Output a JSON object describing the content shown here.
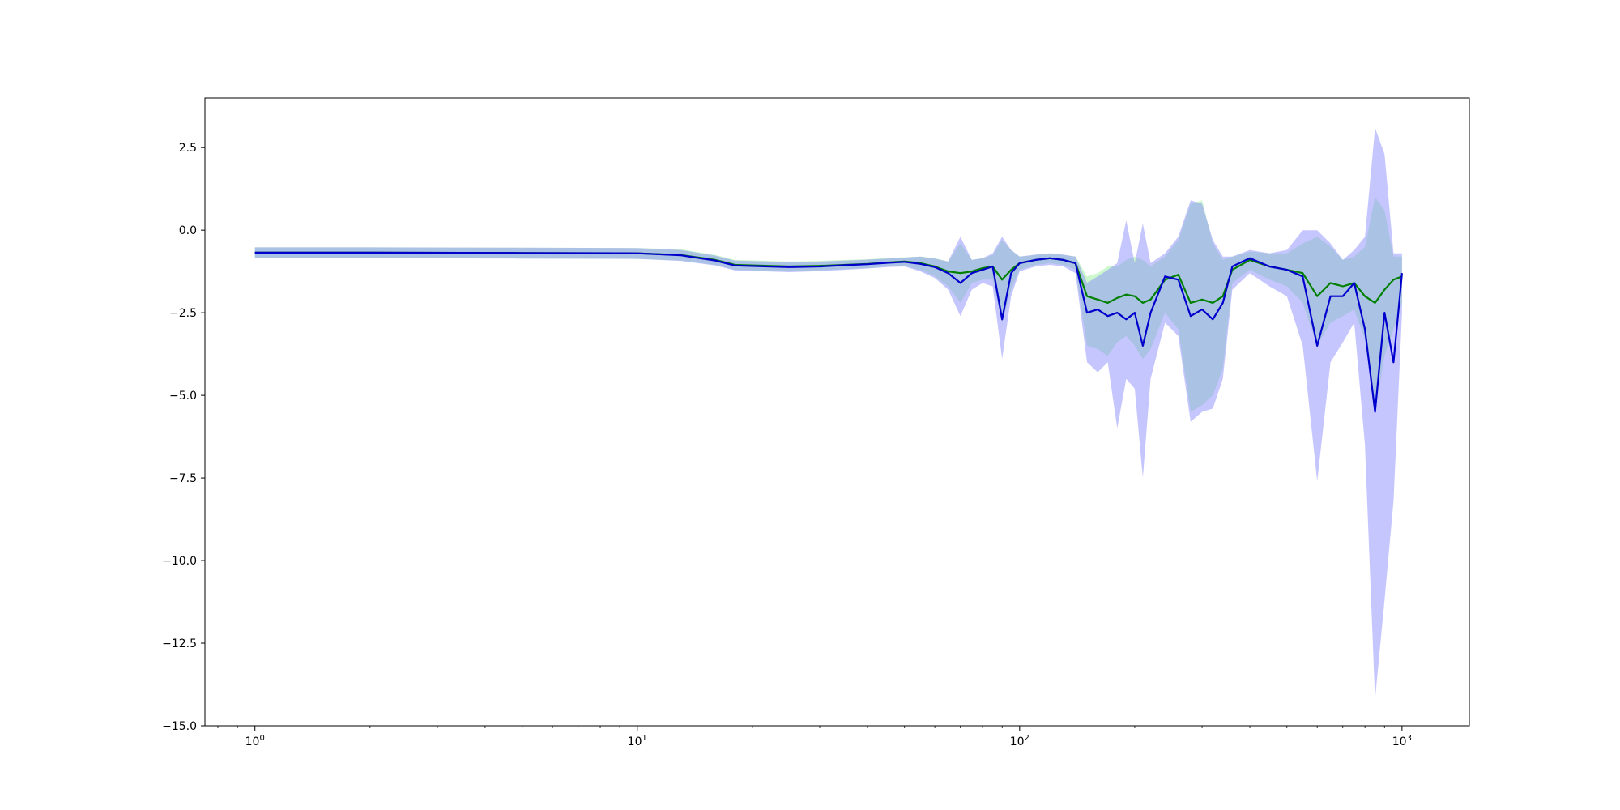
{
  "chart_data": {
    "type": "line",
    "title": "",
    "xlabel": "",
    "ylabel": "",
    "x_scale": "log",
    "xlim": [
      0.74,
      1500
    ],
    "ylim": [
      -15.0,
      4.0
    ],
    "grid": false,
    "legend": "none",
    "y_ticks": [
      {
        "value": 2.5,
        "label": "2.5"
      },
      {
        "value": 0.0,
        "label": "0.0"
      },
      {
        "value": -2.5,
        "label": "−2.5"
      },
      {
        "value": -5.0,
        "label": "−5.0"
      },
      {
        "value": -7.5,
        "label": "−7.5"
      },
      {
        "value": -10.0,
        "label": "−10.0"
      },
      {
        "value": -12.5,
        "label": "−12.5"
      },
      {
        "value": -15.0,
        "label": "−15.0"
      }
    ],
    "x_ticks": [
      {
        "value": 1,
        "base": "10",
        "exp": "0"
      },
      {
        "value": 10,
        "base": "10",
        "exp": "1"
      },
      {
        "value": 100,
        "base": "10",
        "exp": "2"
      },
      {
        "value": 1000,
        "base": "10",
        "exp": "3"
      }
    ],
    "series": [
      {
        "color": "#008000",
        "band_color": "#90ee90",
        "x": [
          1,
          2,
          5,
          10,
          13,
          16,
          18,
          22,
          25,
          30,
          35,
          40,
          45,
          50,
          55,
          60,
          65,
          70,
          75,
          80,
          85,
          90,
          95,
          100,
          110,
          120,
          130,
          140,
          150,
          160,
          170,
          180,
          190,
          200,
          210,
          220,
          240,
          260,
          280,
          300,
          320,
          340,
          360,
          400,
          450,
          500,
          550,
          600,
          650,
          700,
          750,
          800,
          850,
          900,
          950,
          1000
        ],
        "y": [
          -0.68,
          -0.68,
          -0.69,
          -0.7,
          -0.75,
          -0.9,
          -1.05,
          -1.08,
          -1.1,
          -1.08,
          -1.05,
          -1.02,
          -0.98,
          -0.95,
          -1.0,
          -1.1,
          -1.25,
          -1.3,
          -1.25,
          -1.15,
          -1.1,
          -1.5,
          -1.2,
          -1.0,
          -0.9,
          -0.85,
          -0.9,
          -1.0,
          -2.0,
          -2.1,
          -2.2,
          -2.05,
          -1.95,
          -2.0,
          -2.2,
          -2.1,
          -1.5,
          -1.35,
          -2.2,
          -2.1,
          -2.2,
          -2.0,
          -1.2,
          -0.9,
          -1.1,
          -1.2,
          -1.3,
          -2.0,
          -1.6,
          -1.7,
          -1.6,
          -2.0,
          -2.2,
          -1.8,
          -1.5,
          -1.4
        ],
        "lower": [
          -0.85,
          -0.85,
          -0.86,
          -0.87,
          -0.92,
          -1.05,
          -1.2,
          -1.23,
          -1.25,
          -1.22,
          -1.18,
          -1.15,
          -1.1,
          -1.08,
          -1.2,
          -1.4,
          -1.7,
          -2.2,
          -1.6,
          -1.5,
          -1.5,
          -2.8,
          -1.8,
          -1.2,
          -1.05,
          -1.0,
          -1.05,
          -1.2,
          -3.5,
          -3.6,
          -3.8,
          -3.4,
          -3.2,
          -3.5,
          -3.9,
          -3.6,
          -2.5,
          -3.0,
          -5.5,
          -5.3,
          -5.0,
          -4.2,
          -1.6,
          -1.2,
          -1.5,
          -1.7,
          -2.2,
          -3.5,
          -2.8,
          -2.6,
          -2.4,
          -3.3,
          -5.5,
          -3.8,
          -3.0,
          -2.2
        ],
        "upper": [
          -0.52,
          -0.52,
          -0.53,
          -0.54,
          -0.58,
          -0.75,
          -0.9,
          -0.93,
          -0.95,
          -0.93,
          -0.9,
          -0.88,
          -0.84,
          -0.82,
          -0.8,
          -0.85,
          -0.95,
          -0.4,
          -0.9,
          -0.85,
          -0.75,
          -0.3,
          -0.6,
          -0.8,
          -0.75,
          -0.7,
          -0.75,
          -0.8,
          -1.4,
          -1.3,
          -1.1,
          -1.1,
          -0.9,
          -0.8,
          -0.9,
          -1.1,
          -0.8,
          -0.3,
          0.8,
          0.9,
          -0.4,
          -0.9,
          -0.8,
          -0.65,
          -0.7,
          -0.7,
          -0.4,
          -0.2,
          -0.5,
          -0.9,
          -0.8,
          -0.5,
          1.0,
          0.6,
          -0.8,
          -0.8
        ]
      },
      {
        "color": "#0000cc",
        "band_color": "#8080ff",
        "x": [
          1,
          2,
          5,
          10,
          13,
          16,
          18,
          22,
          25,
          30,
          35,
          40,
          45,
          50,
          55,
          60,
          65,
          70,
          75,
          80,
          85,
          90,
          95,
          100,
          110,
          120,
          130,
          140,
          150,
          160,
          170,
          180,
          190,
          200,
          210,
          220,
          240,
          260,
          280,
          300,
          320,
          340,
          360,
          400,
          450,
          500,
          550,
          600,
          650,
          700,
          750,
          800,
          850,
          900,
          950,
          1000
        ],
        "y": [
          -0.68,
          -0.68,
          -0.69,
          -0.7,
          -0.76,
          -0.92,
          -1.07,
          -1.1,
          -1.12,
          -1.1,
          -1.06,
          -1.03,
          -0.99,
          -0.96,
          -1.02,
          -1.12,
          -1.3,
          -1.6,
          -1.3,
          -1.2,
          -1.1,
          -2.7,
          -1.3,
          -1.0,
          -0.9,
          -0.85,
          -0.9,
          -1.0,
          -2.5,
          -2.4,
          -2.6,
          -2.5,
          -2.7,
          -2.5,
          -3.5,
          -2.5,
          -1.4,
          -1.5,
          -2.6,
          -2.4,
          -2.7,
          -2.2,
          -1.1,
          -0.85,
          -1.1,
          -1.2,
          -1.4,
          -3.5,
          -2.0,
          -2.0,
          -1.6,
          -3.0,
          -5.5,
          -2.5,
          -4.0,
          -1.3
        ],
        "lower": [
          -0.85,
          -0.85,
          -0.86,
          -0.87,
          -0.93,
          -1.07,
          -1.22,
          -1.25,
          -1.27,
          -1.24,
          -1.2,
          -1.16,
          -1.12,
          -1.1,
          -1.25,
          -1.45,
          -1.8,
          -2.6,
          -1.8,
          -1.6,
          -1.7,
          -3.9,
          -2.0,
          -1.25,
          -1.1,
          -1.05,
          -1.1,
          -1.3,
          -4.0,
          -4.3,
          -4.0,
          -6.0,
          -4.5,
          -4.8,
          -7.5,
          -4.5,
          -2.8,
          -3.2,
          -5.8,
          -5.5,
          -5.4,
          -4.5,
          -1.8,
          -1.3,
          -1.7,
          -2.0,
          -3.5,
          -7.6,
          -4.0,
          -3.4,
          -2.8,
          -6.5,
          -14.2,
          -11.2,
          -8.2,
          -2.5
        ],
        "upper": [
          -0.52,
          -0.52,
          -0.53,
          -0.54,
          -0.6,
          -0.77,
          -0.92,
          -0.95,
          -0.97,
          -0.95,
          -0.92,
          -0.89,
          -0.86,
          -0.83,
          -0.8,
          -0.86,
          -0.95,
          -0.2,
          -0.9,
          -0.85,
          -0.7,
          -0.2,
          -0.6,
          -0.8,
          -0.74,
          -0.7,
          -0.74,
          -0.8,
          -1.6,
          -1.4,
          -1.2,
          -1.0,
          0.3,
          -1.0,
          0.2,
          -1.0,
          -0.7,
          -0.2,
          0.9,
          0.8,
          -0.3,
          -0.8,
          -0.8,
          -0.6,
          -0.7,
          -0.6,
          0.0,
          0.0,
          -0.4,
          -0.9,
          -0.6,
          -0.2,
          3.1,
          2.3,
          -0.7,
          -0.7
        ]
      }
    ]
  }
}
